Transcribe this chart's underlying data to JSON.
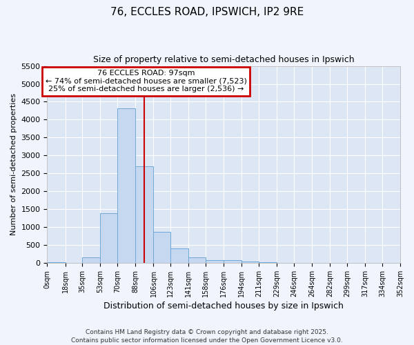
{
  "title1": "76, ECCLES ROAD, IPSWICH, IP2 9RE",
  "title2": "Size of property relative to semi-detached houses in Ipswich",
  "xlabel": "Distribution of semi-detached houses by size in Ipswich",
  "ylabel": "Number of semi-detached properties",
  "footnote1": "Contains HM Land Registry data © Crown copyright and database right 2025.",
  "footnote2": "Contains public sector information licensed under the Open Government Licence v3.0.",
  "annotation_line1": "76 ECCLES ROAD: 97sqm",
  "annotation_line2": "← 74% of semi-detached houses are smaller (7,523)",
  "annotation_line3": "25% of semi-detached houses are larger (2,536) →",
  "property_size": 97,
  "bin_edges": [
    0,
    18,
    35,
    53,
    70,
    88,
    106,
    123,
    141,
    158,
    176,
    194,
    211,
    229,
    246,
    264,
    282,
    299,
    317,
    334,
    352
  ],
  "bar_heights": [
    25,
    0,
    155,
    1390,
    4320,
    2700,
    860,
    400,
    150,
    75,
    75,
    45,
    10,
    5,
    3,
    2,
    0,
    0,
    0,
    0
  ],
  "bar_color": "#c5d8f0",
  "bar_edge_color": "#6fa8d8",
  "vline_color": "#cc0000",
  "annotation_box_edge_color": "#cc0000",
  "plot_bg_color": "#dce6f5",
  "fig_bg_color": "#f0f4fc",
  "ylim": [
    0,
    5500
  ],
  "yticks": [
    0,
    500,
    1000,
    1500,
    2000,
    2500,
    3000,
    3500,
    4000,
    4500,
    5000,
    5500
  ],
  "tick_labels": [
    "0sqm",
    "18sqm",
    "35sqm",
    "53sqm",
    "70sqm",
    "88sqm",
    "106sqm",
    "123sqm",
    "141sqm",
    "158sqm",
    "176sqm",
    "194sqm",
    "211sqm",
    "229sqm",
    "246sqm",
    "264sqm",
    "282sqm",
    "299sqm",
    "317sqm",
    "334sqm",
    "352sqm"
  ]
}
